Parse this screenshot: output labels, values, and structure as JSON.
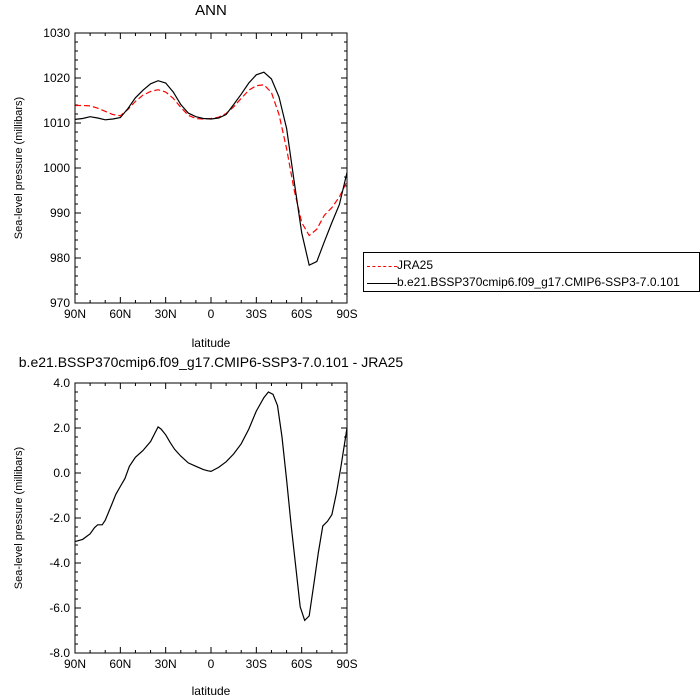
{
  "chart_data": [
    {
      "type": "line",
      "title": "ANN",
      "xlabel": "latitude",
      "ylabel": "Sea-level pressure (millibars)",
      "xlim": [
        90,
        -90
      ],
      "ylim": [
        970,
        1030
      ],
      "x_ticks": [
        90,
        60,
        30,
        0,
        -30,
        -60,
        -90
      ],
      "x_tick_labels": [
        "90N",
        "60N",
        "30N",
        "0",
        "30S",
        "60S",
        "90S"
      ],
      "y_ticks": [
        970,
        980,
        990,
        1000,
        1010,
        1020,
        1030
      ],
      "y_tick_labels": [
        "970",
        "980",
        "990",
        "1000",
        "1010",
        "1020",
        "1030"
      ],
      "legend_position": "right",
      "series": [
        {
          "name": "JRA25",
          "color": "#ff0000",
          "dash": "dashed",
          "x": [
            90,
            85,
            80,
            75,
            70,
            65,
            60,
            55,
            50,
            45,
            40,
            35,
            30,
            25,
            20,
            15,
            10,
            5,
            0,
            -5,
            -10,
            -15,
            -20,
            -25,
            -30,
            -35,
            -40,
            -45,
            -50,
            -55,
            -60,
            -65,
            -70,
            -75,
            -80,
            -85,
            -90
          ],
          "values": [
            1013.9,
            1013.9,
            1013.8,
            1013.3,
            1012.6,
            1011.9,
            1011.6,
            1013.0,
            1014.8,
            1016.2,
            1017.0,
            1017.4,
            1016.9,
            1015.5,
            1013.5,
            1011.7,
            1011.0,
            1010.9,
            1011.0,
            1011.3,
            1012.1,
            1013.6,
            1015.5,
            1017.3,
            1018.3,
            1018.5,
            1016.8,
            1011.9,
            1004.3,
            995.2,
            987.9,
            985.0,
            986.4,
            989.5,
            991.2,
            993.6,
            997.0
          ]
        },
        {
          "name": "b.e21.BSSP370cmip6.f09_g17.CMIP6-SSP3-7.0.101",
          "color": "#000000",
          "dash": "solid",
          "x": [
            90,
            85,
            80,
            75,
            70,
            65,
            60,
            55,
            50,
            45,
            40,
            35,
            30,
            25,
            20,
            15,
            10,
            5,
            0,
            -5,
            -10,
            -15,
            -20,
            -25,
            -30,
            -35,
            -40,
            -45,
            -50,
            -55,
            -60,
            -65,
            -70,
            -75,
            -80,
            -85,
            -90
          ],
          "values": [
            1010.8,
            1011.0,
            1011.4,
            1011.1,
            1010.7,
            1010.9,
            1011.2,
            1013.2,
            1015.6,
            1017.3,
            1018.7,
            1019.4,
            1018.9,
            1016.9,
            1014.1,
            1012.2,
            1011.4,
            1011.0,
            1010.9,
            1011.1,
            1011.9,
            1014.1,
            1016.4,
            1018.9,
            1020.7,
            1021.3,
            1019.8,
            1015.8,
            1008.8,
            997.1,
            985.6,
            978.4,
            979.2,
            983.6,
            987.9,
            991.9,
            999.0
          ]
        }
      ]
    },
    {
      "type": "line",
      "title": "b.e21.BSSP370cmip6.f09_g17.CMIP6-SSP3-7.0.101 - JRA25",
      "xlabel": "latitude",
      "ylabel": "Sea-level pressure (millibars)",
      "xlim": [
        90,
        -90
      ],
      "ylim": [
        -8,
        4
      ],
      "x_ticks": [
        90,
        60,
        30,
        0,
        -30,
        -60,
        -90
      ],
      "x_tick_labels": [
        "90N",
        "60N",
        "30N",
        "0",
        "30S",
        "60S",
        "90S"
      ],
      "y_ticks": [
        4,
        2,
        0,
        -2,
        -4,
        -6,
        -8
      ],
      "y_tick_labels": [
        "4.0",
        "2.0",
        "0.0",
        "-2.0",
        "-4.0",
        "-6.0",
        "-8.0"
      ],
      "series": [
        {
          "color": "#000000",
          "dash": "solid",
          "x": [
            90,
            85,
            80,
            77,
            75,
            72,
            70,
            66,
            63,
            60,
            57,
            54,
            50,
            45,
            40,
            35,
            33,
            30,
            27,
            24,
            20,
            15,
            10,
            5,
            2,
            0,
            -5,
            -10,
            -15,
            -20,
            -25,
            -30,
            -35,
            -38,
            -41,
            -44,
            -47,
            -50,
            -53,
            -56,
            -59,
            -62,
            -65,
            -68,
            -71,
            -74,
            -77,
            -80,
            -83,
            -86,
            -90
          ],
          "values": [
            -3.05,
            -2.95,
            -2.7,
            -2.42,
            -2.3,
            -2.3,
            -2.1,
            -1.45,
            -0.95,
            -0.6,
            -0.25,
            0.3,
            0.7,
            1.0,
            1.4,
            2.05,
            1.95,
            1.7,
            1.35,
            1.05,
            0.75,
            0.45,
            0.3,
            0.15,
            0.1,
            0.07,
            0.25,
            0.5,
            0.85,
            1.3,
            1.95,
            2.75,
            3.35,
            3.6,
            3.5,
            3.0,
            1.6,
            -0.3,
            -2.3,
            -4.1,
            -5.95,
            -6.55,
            -6.35,
            -4.95,
            -3.55,
            -2.35,
            -2.15,
            -1.85,
            -0.9,
            0.3,
            2.0
          ]
        }
      ]
    }
  ]
}
